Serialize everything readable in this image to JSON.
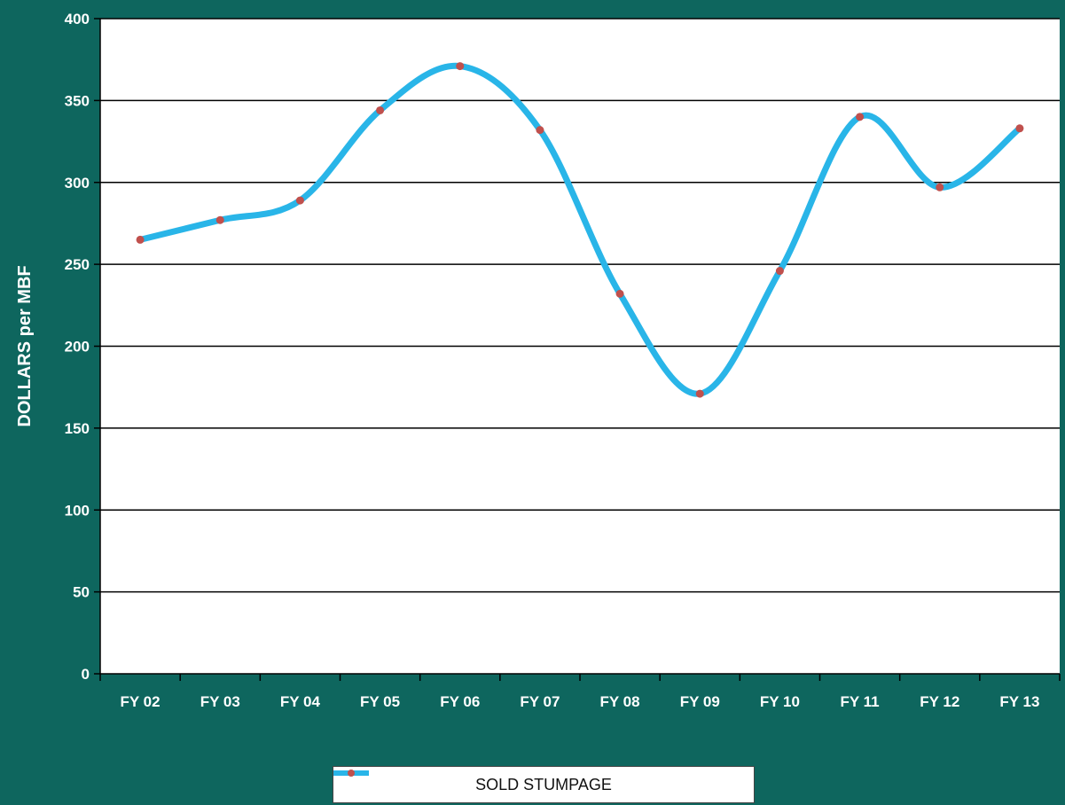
{
  "chart_data": {
    "type": "line",
    "title": "",
    "xlabel": "",
    "ylabel": "DOLLARS per MBF",
    "categories": [
      "FY 02",
      "FY 03",
      "FY 04",
      "FY 05",
      "FY 06",
      "FY 07",
      "FY 08",
      "FY 09",
      "FY 10",
      "FY 11",
      "FY 12",
      "FY 13"
    ],
    "series": [
      {
        "name": "SOLD STUMPAGE",
        "values": [
          265,
          277,
          289,
          344,
          371,
          332,
          232,
          171,
          246,
          340,
          297,
          333
        ],
        "line_color": "#29b5e8",
        "marker_color": "#c0504d"
      }
    ],
    "ylim": [
      0,
      400
    ],
    "yticks": [
      "0",
      "50",
      "100",
      "150",
      "200",
      "250",
      "300",
      "350",
      "400"
    ],
    "grid": true,
    "legend_position": "bottom",
    "background_color": "#0e665e",
    "plot_background_color": "#ffffff"
  }
}
